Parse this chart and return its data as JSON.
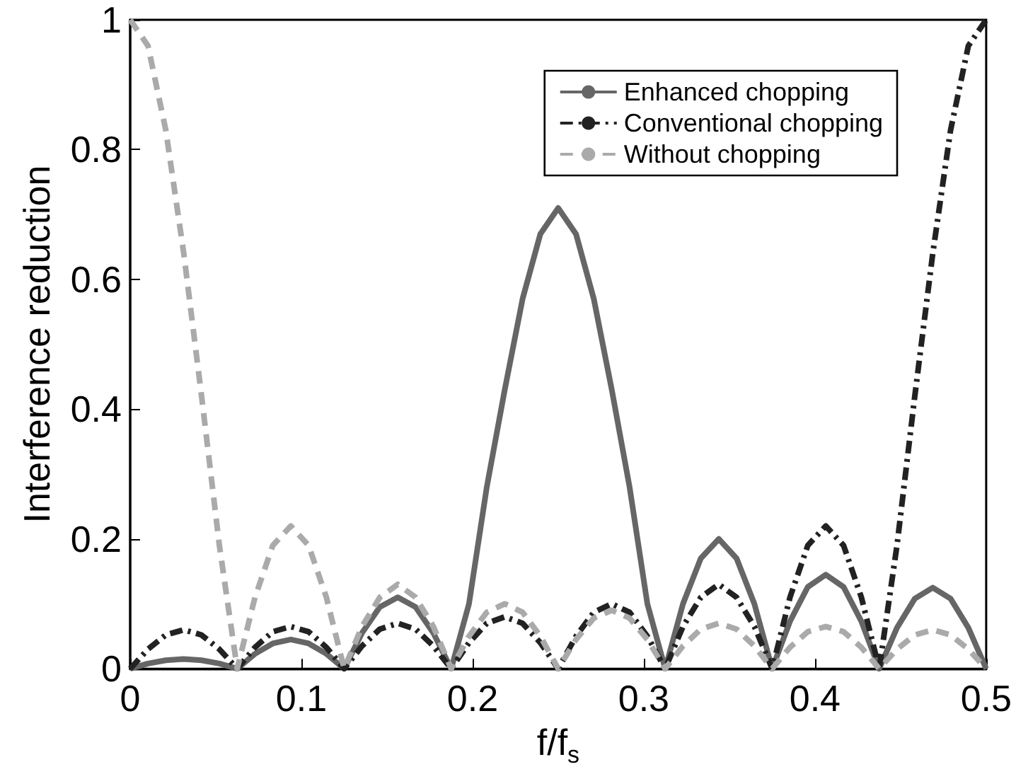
{
  "chart_data": {
    "type": "line",
    "xlabel": "f/f$_{s}$",
    "ylabel": "Interference reduction",
    "x": [
      0,
      0.0104,
      0.0208,
      0.0313,
      0.0417,
      0.0521,
      0.0625,
      0.0729,
      0.0833,
      0.0938,
      0.1042,
      0.1146,
      0.125,
      0.1354,
      0.1458,
      0.1563,
      0.1667,
      0.1771,
      0.1875,
      0.1979,
      0.2083,
      0.2188,
      0.2292,
      0.2396,
      0.25,
      0.2604,
      0.2708,
      0.2813,
      0.2917,
      0.3021,
      0.3125,
      0.3229,
      0.3333,
      0.3438,
      0.3542,
      0.3646,
      0.375,
      0.3854,
      0.3958,
      0.4063,
      0.4167,
      0.4271,
      0.4375,
      0.4479,
      0.4583,
      0.4688,
      0.4792,
      0.4896,
      0.5
    ],
    "series": [
      {
        "name": "Enhanced chopping",
        "color": "#666666",
        "line_style": "solid",
        "values": [
          0,
          0.008,
          0.013,
          0.015,
          0.013,
          0.008,
          0,
          0.023,
          0.039,
          0.045,
          0.039,
          0.023,
          0,
          0.055,
          0.095,
          0.11,
          0.095,
          0.055,
          0,
          0.1,
          0.28,
          0.43,
          0.57,
          0.67,
          0.71,
          0.67,
          0.57,
          0.43,
          0.28,
          0.1,
          0,
          0.1,
          0.17,
          0.2,
          0.17,
          0.1,
          0,
          0.073,
          0.126,
          0.145,
          0.126,
          0.073,
          0,
          0.063,
          0.108,
          0.125,
          0.108,
          0.063,
          0
        ]
      },
      {
        "name": "Conventional chopping",
        "color": "#222222",
        "line_style": "dashdot",
        "values": [
          0,
          0.03,
          0.052,
          0.06,
          0.052,
          0.03,
          0,
          0.033,
          0.057,
          0.065,
          0.057,
          0.033,
          0,
          0.035,
          0.061,
          0.07,
          0.061,
          0.035,
          0,
          0.04,
          0.07,
          0.08,
          0.07,
          0.04,
          0,
          0.05,
          0.087,
          0.1,
          0.087,
          0.05,
          0,
          0.065,
          0.11,
          0.13,
          0.11,
          0.065,
          0,
          0.11,
          0.19,
          0.22,
          0.19,
          0.11,
          0,
          0.19,
          0.42,
          0.64,
          0.83,
          0.96,
          1
        ]
      },
      {
        "name": "Without chopping",
        "color": "#aaaaaa",
        "line_style": "dashed",
        "values": [
          1,
          0.96,
          0.83,
          0.64,
          0.42,
          0.19,
          0,
          0.11,
          0.19,
          0.22,
          0.19,
          0.11,
          0,
          0.065,
          0.11,
          0.13,
          0.11,
          0.065,
          0,
          0.05,
          0.087,
          0.1,
          0.087,
          0.05,
          0,
          0.045,
          0.078,
          0.09,
          0.078,
          0.045,
          0,
          0.035,
          0.061,
          0.07,
          0.061,
          0.035,
          0,
          0.033,
          0.057,
          0.065,
          0.057,
          0.033,
          0,
          0.03,
          0.052,
          0.06,
          0.052,
          0.03,
          0
        ]
      }
    ],
    "xlim": [
      0,
      0.5
    ],
    "xticks": [
      0,
      0.1,
      0.2,
      0.3,
      0.4,
      0.5
    ],
    "ylim": [
      0,
      1
    ],
    "yticks": [
      0,
      0.2,
      0.4,
      0.6,
      0.8,
      1
    ],
    "grid": false,
    "legend": "top right",
    "marker": "none"
  }
}
